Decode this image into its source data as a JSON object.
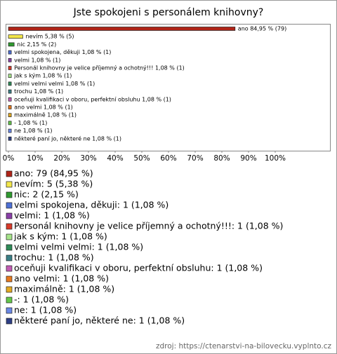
{
  "chart_data": {
    "type": "hbar",
    "title": "Jste spokojeni s personálem knihovny?",
    "categories": [
      "ano",
      "nevím",
      "nic",
      "velmi spokojena, děkuji",
      "velmi",
      "Personál knihovny je velice příjemný a ochotný!!!",
      "jak s kým",
      "velmi velmi velmi",
      "trochu",
      "oceňuji kvalifikaci v oboru, perfektní obsluhu",
      "ano velmi",
      "maximálně",
      "-",
      "ne",
      "některé paní jo, některé ne"
    ],
    "values": [
      84.95,
      5.38,
      2.15,
      1.08,
      1.08,
      1.08,
      1.08,
      1.08,
      1.08,
      1.08,
      1.08,
      1.08,
      1.08,
      1.08,
      1.08
    ],
    "value_labels": [
      "ano 84,95 % (79)",
      "nevím 5,38 % (5)",
      "nic 2,15 % (2)",
      "velmi spokojena, děkuji 1,08 % (1)",
      "velmi 1,08 % (1)",
      "Personál knihovny je velice příjemný a ochotný!!! 1,08 % (1)",
      "jak s kým 1,08 % (1)",
      "velmi velmi velmi 1,08 % (1)",
      "trochu 1,08 % (1)",
      "oceňuji kvalifikaci v oboru, perfektní obsluhu 1,08 % (1)",
      "ano velmi 1,08 % (1)",
      "maximálně 1,08 % (1)",
      "- 1,08 % (1)",
      "ne 1,08 % (1)",
      "některé paní jo, některé ne 1,08 % (1)"
    ],
    "colors": [
      "#b02418",
      "#f2e64a",
      "#2f9a2f",
      "#4d70d6",
      "#8a3fa8",
      "#d83a2a",
      "#a6e48a",
      "#2e8b57",
      "#3a7f86",
      "#c25cb4",
      "#e87a1e",
      "#e4aa22",
      "#64c84a",
      "#6a88e6",
      "#2e3f86"
    ],
    "legend": [
      "ano: 79 (84,95 %)",
      "nevím: 5 (5,38 %)",
      "nic: 2 (2,15 %)",
      "velmi spokojena, děkuji: 1 (1,08 %)",
      "velmi: 1 (1,08 %)",
      "Personál knihovny je velice příjemný a ochotný!!!: 1 (1,08 %)",
      "jak s kým: 1 (1,08 %)",
      "velmi velmi velmi: 1 (1,08 %)",
      "trochu: 1 (1,08 %)",
      "oceňuji kvalifikaci v oboru, perfektní obsluhu: 1 (1,08 %)",
      "ano velmi: 1 (1,08 %)",
      "maximálně: 1 (1,08 %)",
      "-: 1 (1,08 %)",
      "ne: 1 (1,08 %)",
      "některé paní jo, některé ne: 1 (1,08 %)"
    ],
    "xlim": [
      0,
      100
    ],
    "xticks": [
      {
        "value": 0,
        "label": "0%"
      },
      {
        "value": 10,
        "label": "10%"
      },
      {
        "value": 20,
        "label": "20%"
      },
      {
        "value": 30,
        "label": "30%"
      },
      {
        "value": 40,
        "label": "40%"
      },
      {
        "value": 50,
        "label": "50%"
      },
      {
        "value": 60,
        "label": "60%"
      },
      {
        "value": 70,
        "label": "70%"
      },
      {
        "value": 80,
        "label": "80%"
      },
      {
        "value": 90,
        "label": "90%"
      },
      {
        "value": 100,
        "label": "100%"
      }
    ],
    "source": "zdroj: https://ctenarstvi-na-bilovecku.vyplnto.cz"
  }
}
